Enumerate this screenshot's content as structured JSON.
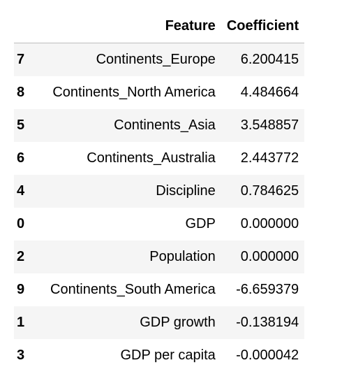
{
  "table": {
    "columns": [
      "Feature",
      "Coefficient"
    ],
    "rows": [
      {
        "index": "7",
        "feature": "Continents_Europe",
        "coefficient": "6.200415"
      },
      {
        "index": "8",
        "feature": "Continents_North America",
        "coefficient": "4.484664"
      },
      {
        "index": "5",
        "feature": "Continents_Asia",
        "coefficient": "3.548857"
      },
      {
        "index": "6",
        "feature": "Continents_Australia",
        "coefficient": "2.443772"
      },
      {
        "index": "4",
        "feature": "Discipline",
        "coefficient": "0.784625"
      },
      {
        "index": "0",
        "feature": "GDP",
        "coefficient": "0.000000"
      },
      {
        "index": "2",
        "feature": "Population",
        "coefficient": "0.000000"
      },
      {
        "index": "9",
        "feature": "Continents_South America",
        "coefficient": "-6.659379"
      },
      {
        "index": "1",
        "feature": "GDP growth",
        "coefficient": "-0.138194"
      },
      {
        "index": "3",
        "feature": "GDP per capita",
        "coefficient": "-0.000042"
      }
    ]
  }
}
